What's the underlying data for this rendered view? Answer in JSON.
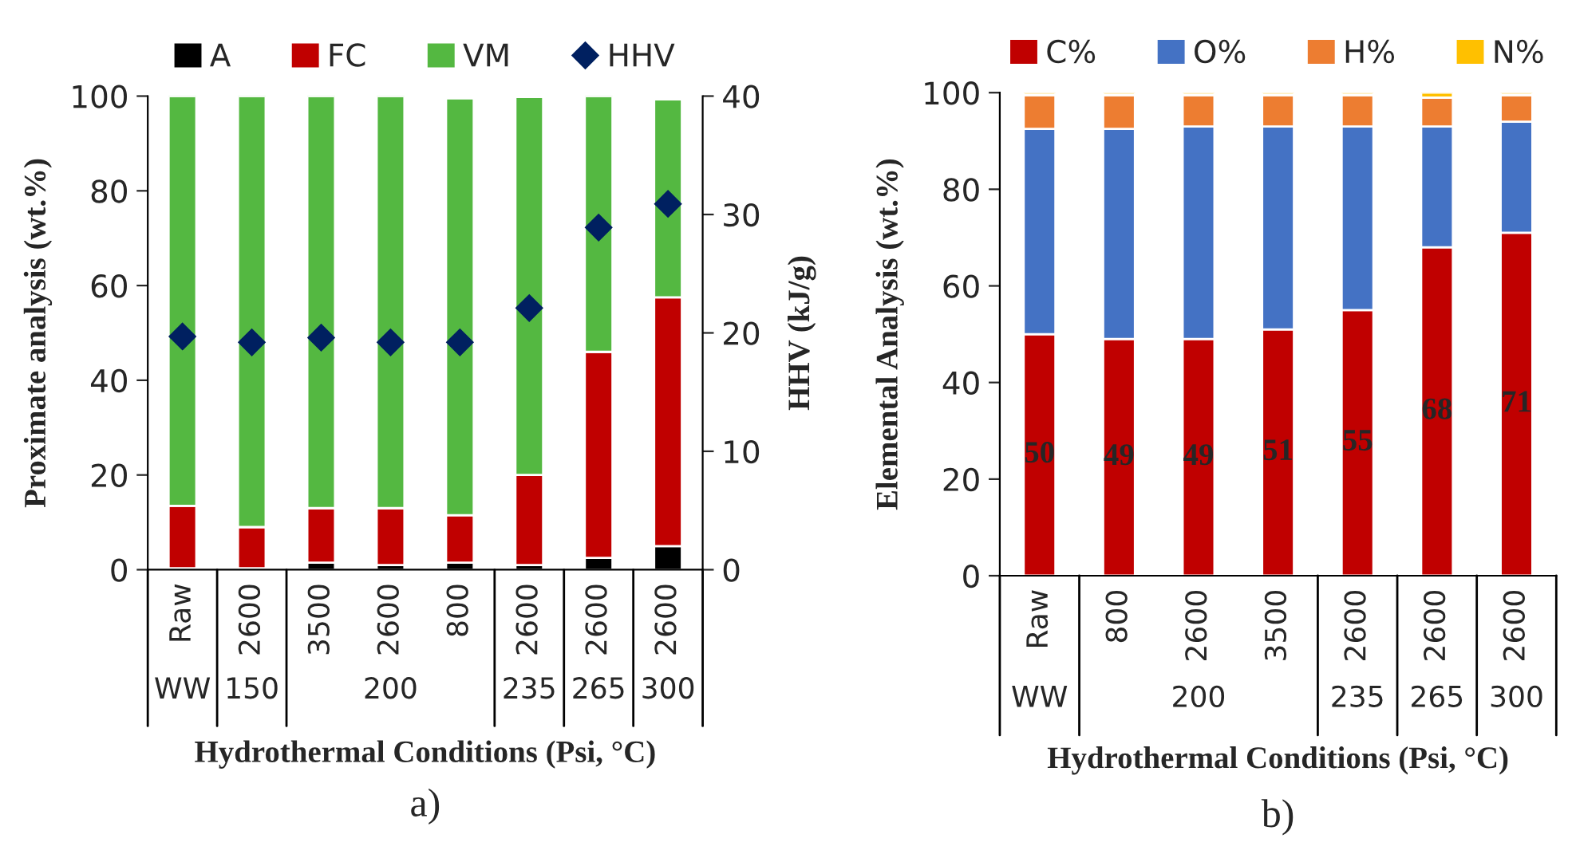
{
  "chart_data": [
    {
      "type": "bar",
      "stacked": true,
      "categories": [
        "Raw",
        "2600",
        "3500",
        "2600",
        "800",
        "2600",
        "2600",
        "2600"
      ],
      "series": [
        {
          "name": "A",
          "color": "#000000",
          "values": [
            0.3,
            0.3,
            1.5,
            1,
            1.5,
            1,
            2.5,
            5
          ]
        },
        {
          "name": "FC",
          "color": "#c00000",
          "values": [
            13.2,
            8.7,
            11.5,
            12,
            10,
            19,
            43.5,
            52.5
          ]
        },
        {
          "name": "VM",
          "color": "#54b841",
          "values": [
            86.5,
            91,
            87,
            87,
            88,
            79.8,
            54,
            41.8
          ]
        },
        {
          "name": "HHV",
          "type": "scatter",
          "axis": "y2",
          "color": "#002060",
          "marker": "diamond",
          "values": [
            19.7,
            19.2,
            19.6,
            19.2,
            19.2,
            22.1,
            28.9,
            30.9
          ]
        }
      ],
      "ylim": [
        0,
        100
      ],
      "yticks": [
        0,
        20,
        40,
        60,
        80,
        100
      ],
      "y2lim": [
        0,
        40
      ],
      "y2ticks": [
        0,
        10,
        20,
        30,
        40
      ],
      "ylabel": "Proximate analysis (wt.%)",
      "y2label": "HHV (kJ/g)",
      "xlabel": "Hydrothermal Conditions (Psi, °C)",
      "legend": "top",
      "grid": false,
      "annotations": [
        "WW",
        "150",
        "200",
        "235",
        "265",
        "300",
        "a)"
      ]
    },
    {
      "type": "bar",
      "stacked": true,
      "categories": [
        "Raw",
        "800",
        "2600",
        "3500",
        "2600",
        "2600",
        "2600"
      ],
      "series": [
        {
          "name": "C%",
          "color": "#c00000",
          "values": [
            50,
            49,
            49,
            51,
            55,
            68,
            71
          ],
          "value_labels": [
            "50",
            "49",
            "49",
            "51",
            "55",
            "68",
            "71"
          ]
        },
        {
          "name": "O%",
          "color": "#4472c4",
          "values": [
            42.5,
            43.5,
            44,
            42,
            38,
            25,
            23
          ]
        },
        {
          "name": "H%",
          "color": "#ed7d31",
          "values": [
            7,
            7,
            6.5,
            6.5,
            6.5,
            6,
            5.5
          ]
        },
        {
          "name": "N%",
          "color": "#ffc000",
          "values": [
            0.5,
            0.5,
            0.5,
            0.5,
            0.5,
            1,
            0.5
          ]
        }
      ],
      "ylim": [
        0,
        100
      ],
      "yticks": [
        0,
        20,
        40,
        60,
        80,
        100
      ],
      "ylabel": "Elemental Analysis (wt.%)",
      "xlabel": "Hydrothermal Conditions (Psi, °C)",
      "legend": "top",
      "grid": false,
      "annotations": [
        "WW",
        "200",
        "235",
        "265",
        "300",
        "b)"
      ]
    }
  ]
}
